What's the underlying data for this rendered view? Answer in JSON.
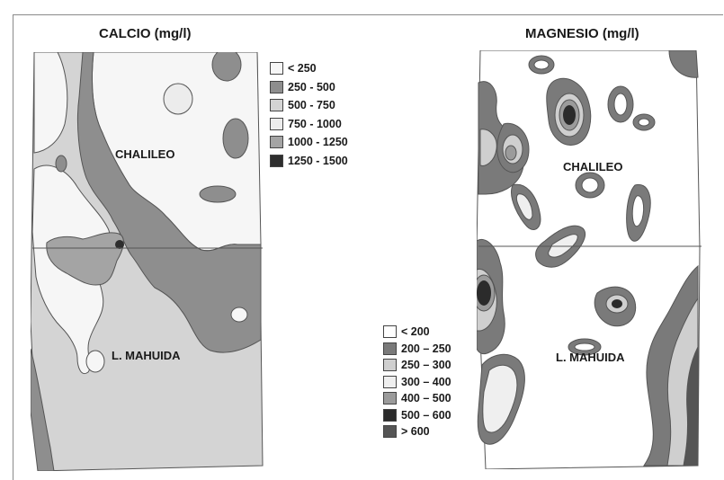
{
  "calcio": {
    "title": "CALCIO (mg/l)",
    "labels": {
      "north": "CHALILEO",
      "south": "L. MAHUIDA"
    },
    "legend": [
      {
        "label": "< 250",
        "color": "#f6f6f6"
      },
      {
        "label": "250 - 500",
        "color": "#8e8e8e"
      },
      {
        "label": "500 - 750",
        "color": "#d4d4d4"
      },
      {
        "label": "750 - 1000",
        "color": "#ececec"
      },
      {
        "label": "1000 - 1250",
        "color": "#a4a4a4"
      },
      {
        "label": "1250 - 1500",
        "color": "#2e2e2e"
      }
    ]
  },
  "magnesio": {
    "title": "MAGNESIO (mg/l)",
    "labels": {
      "north": "CHALILEO",
      "south": "L. MAHUIDA"
    },
    "legend": [
      {
        "label": "< 200",
        "color": "#ffffff"
      },
      {
        "label": "200 – 250",
        "color": "#7a7a7a"
      },
      {
        "label": "250 – 300",
        "color": "#cfcfcf"
      },
      {
        "label": "300 – 400",
        "color": "#efefef"
      },
      {
        "label": "400 – 500",
        "color": "#9b9b9b"
      },
      {
        "label": "500 – 600",
        "color": "#2b2b2b"
      },
      {
        "label": "> 600",
        "color": "#555555"
      }
    ]
  }
}
